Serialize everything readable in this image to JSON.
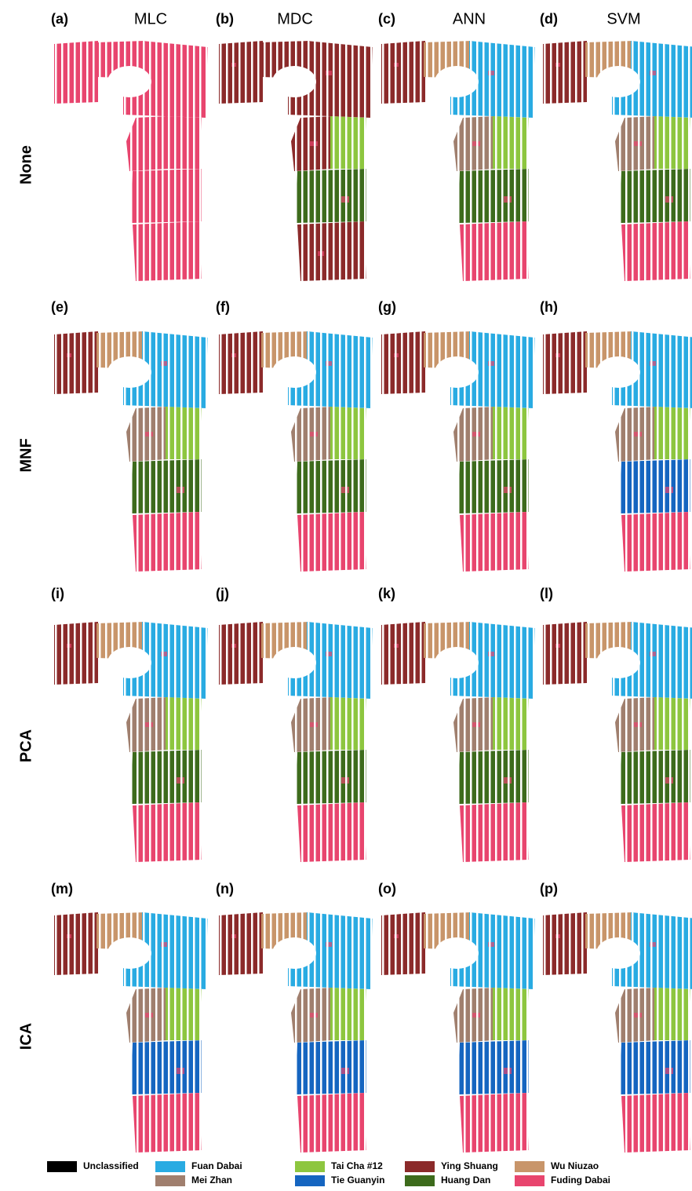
{
  "column_headers": [
    "MLC",
    "MDC",
    "ANN",
    "SVM"
  ],
  "row_labels": [
    "None",
    "MNF",
    "PCA",
    "ICA"
  ],
  "panels": [
    "(a)",
    "(b)",
    "(c)",
    "(d)",
    "(e)",
    "(f)",
    "(g)",
    "(h)",
    "(i)",
    "(j)",
    "(k)",
    "(l)",
    "(m)",
    "(n)",
    "(o)",
    "(p)"
  ],
  "legend": [
    {
      "label": "Unclassified",
      "color": "#000000"
    },
    {
      "label": "Fuan Dabai",
      "color": "#29abe2"
    },
    {
      "label": "Tai Cha #12",
      "color": "#8dc63f"
    },
    {
      "label": "Ying Shuang",
      "color": "#8b2a2a"
    },
    {
      "label": "Wu Niuzao",
      "color": "#c8956a"
    },
    {
      "label": "Mei Zhan",
      "color": "#a07f6e"
    },
    {
      "label": "Tie Guanyin",
      "color": "#1565c0"
    },
    {
      "label": "Huang Dan",
      "color": "#3d6b1c"
    },
    {
      "label": "Fuding Dabai",
      "color": "#e8456e"
    }
  ]
}
